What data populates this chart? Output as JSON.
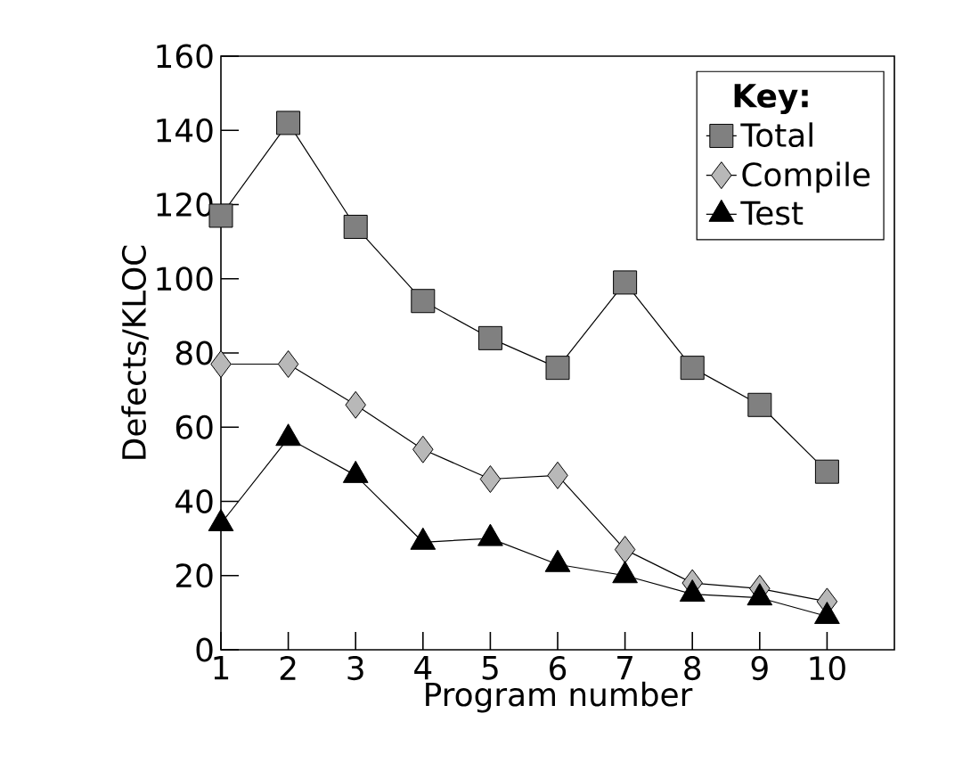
{
  "chart_data": {
    "type": "line",
    "xlabel": "Program number",
    "ylabel": "Defects/KLOC",
    "legend_title": "Key:",
    "x": [
      1,
      2,
      3,
      4,
      5,
      6,
      7,
      8,
      9,
      10
    ],
    "series": [
      {
        "name": "Total",
        "color": "#808080",
        "marker": "square",
        "values": [
          117,
          142,
          114,
          94,
          84,
          76,
          99,
          76,
          66,
          48
        ]
      },
      {
        "name": "Compile",
        "color": "#b8b8b8",
        "marker": "diamond",
        "values": [
          77,
          77,
          66,
          54,
          46,
          47,
          27,
          18,
          16.5,
          13
        ]
      },
      {
        "name": "Test",
        "color": "#000000",
        "marker": "triangle",
        "values": [
          34,
          57,
          47,
          29,
          30,
          23,
          20,
          15,
          14,
          9
        ]
      }
    ],
    "xlim": [
      1,
      11
    ],
    "xticks": [
      1,
      2,
      3,
      4,
      5,
      6,
      7,
      8,
      9,
      10
    ],
    "ylim": [
      0,
      160
    ],
    "yticks": [
      0,
      20,
      40,
      60,
      80,
      100,
      120,
      140,
      160
    ],
    "legend": "top right",
    "grid": false,
    "line_style": "solid"
  }
}
